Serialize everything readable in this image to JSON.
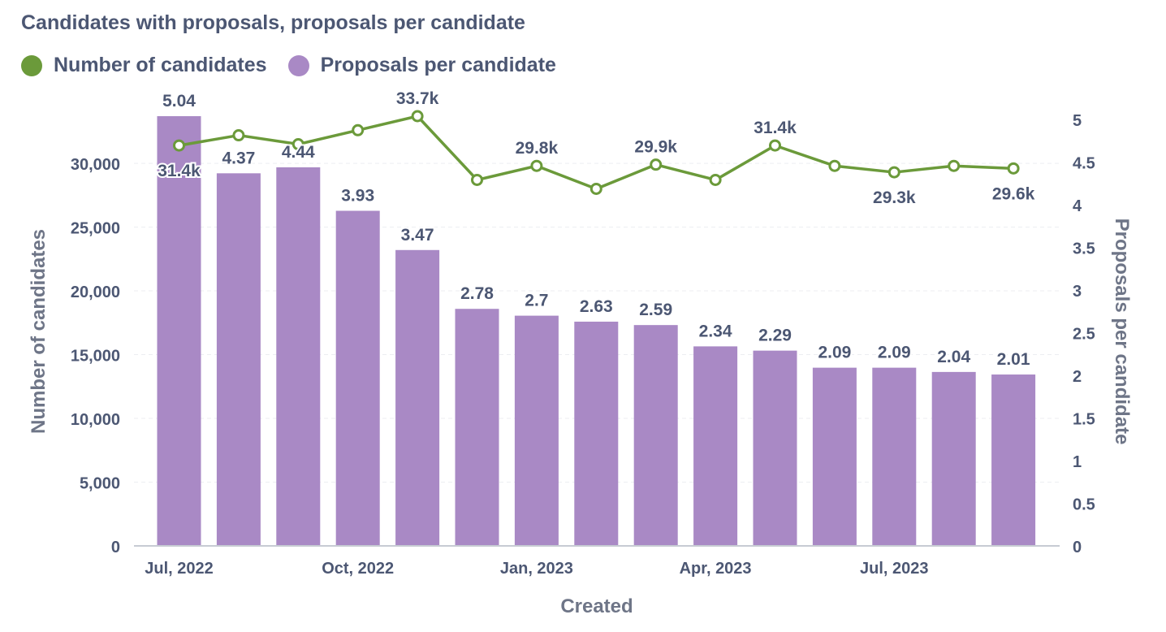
{
  "title": "Candidates with proposals, proposals per candidate",
  "legend": [
    {
      "label": "Number of candidates",
      "color": "#6b9a3a"
    },
    {
      "label": "Proposals per candidate",
      "color": "#a989c5"
    }
  ],
  "chart_data": {
    "type": "bar",
    "categories": [
      "Jul, 2022",
      "Aug, 2022",
      "Sep, 2022",
      "Oct, 2022",
      "Nov, 2022",
      "Dec, 2022",
      "Jan, 2023",
      "Feb, 2023",
      "Mar, 2023",
      "Apr, 2023",
      "May, 2023",
      "Jun, 2023",
      "Jul, 2023",
      "Aug, 2023",
      "Sep, 2023"
    ],
    "x_tick_labels": [
      "Jul, 2022",
      "Oct, 2022",
      "Jan, 2023",
      "Apr, 2023",
      "Jul, 2023"
    ],
    "xlabel": "Created",
    "series": [
      {
        "name": "Proposals per candidate",
        "type": "bar",
        "axis": "right",
        "color": "#a989c5",
        "values": [
          5.04,
          4.37,
          4.44,
          3.93,
          3.47,
          2.78,
          2.7,
          2.63,
          2.59,
          2.34,
          2.29,
          2.09,
          2.09,
          2.04,
          2.01
        ],
        "labels": [
          "5.04",
          "4.37",
          "4.44",
          "3.93",
          "3.47",
          "2.78",
          "2.7",
          "2.63",
          "2.59",
          "2.34",
          "2.29",
          "2.09",
          "2.09",
          "2.04",
          "2.01"
        ]
      },
      {
        "name": "Number of candidates",
        "type": "line",
        "axis": "left",
        "color": "#6b9a3a",
        "values": [
          31400,
          32200,
          31500,
          32600,
          33700,
          28700,
          29800,
          28000,
          29900,
          28700,
          31400,
          29800,
          29300,
          29800,
          29600
        ],
        "labels": [
          "31.4k",
          "",
          "",
          "",
          "33.7k",
          "",
          "29.8k",
          "",
          "29.9k",
          "",
          "31.4k",
          "",
          "29.3k",
          "",
          "29.6k"
        ]
      }
    ],
    "left_axis": {
      "label": "Number of candidates",
      "ylim": [
        0,
        33700
      ],
      "ticks": [
        "0",
        "5,000",
        "10,000",
        "15,000",
        "20,000",
        "25,000",
        "30,000"
      ]
    },
    "right_axis": {
      "label": "Proposals per candidate",
      "ylim": [
        0,
        5.04
      ],
      "ticks": [
        "0",
        "0.5",
        "1",
        "1.5",
        "2",
        "2.5",
        "3",
        "3.5",
        "4",
        "4.5",
        "5"
      ]
    },
    "grid": true,
    "legend_position": "top-left"
  }
}
